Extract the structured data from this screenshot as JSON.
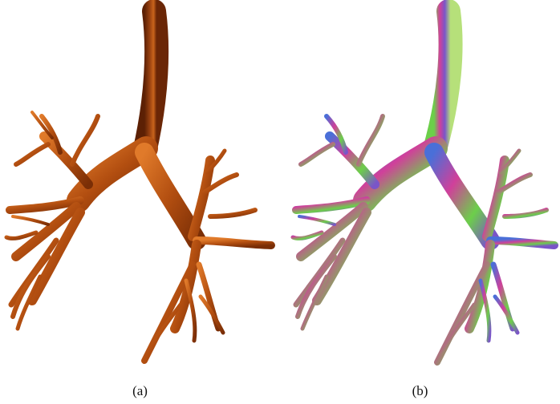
{
  "figure": {
    "panels": [
      {
        "caption": "(a)",
        "render_style": "volume-rendered airway tree, copper/orange shading"
      },
      {
        "caption": "(b)",
        "render_style": "surface-normal colored airway tree, rainbow shading"
      }
    ],
    "colors": {
      "background": "#ffffff",
      "copper_dark": "#7a2e06",
      "copper_mid": "#b8520f",
      "copper_light": "#f08a3a",
      "normal_magenta": "#d0409a",
      "normal_green": "#6ccf4a",
      "normal_purple": "#7a55c8",
      "normal_blue": "#4a6fd8"
    }
  }
}
